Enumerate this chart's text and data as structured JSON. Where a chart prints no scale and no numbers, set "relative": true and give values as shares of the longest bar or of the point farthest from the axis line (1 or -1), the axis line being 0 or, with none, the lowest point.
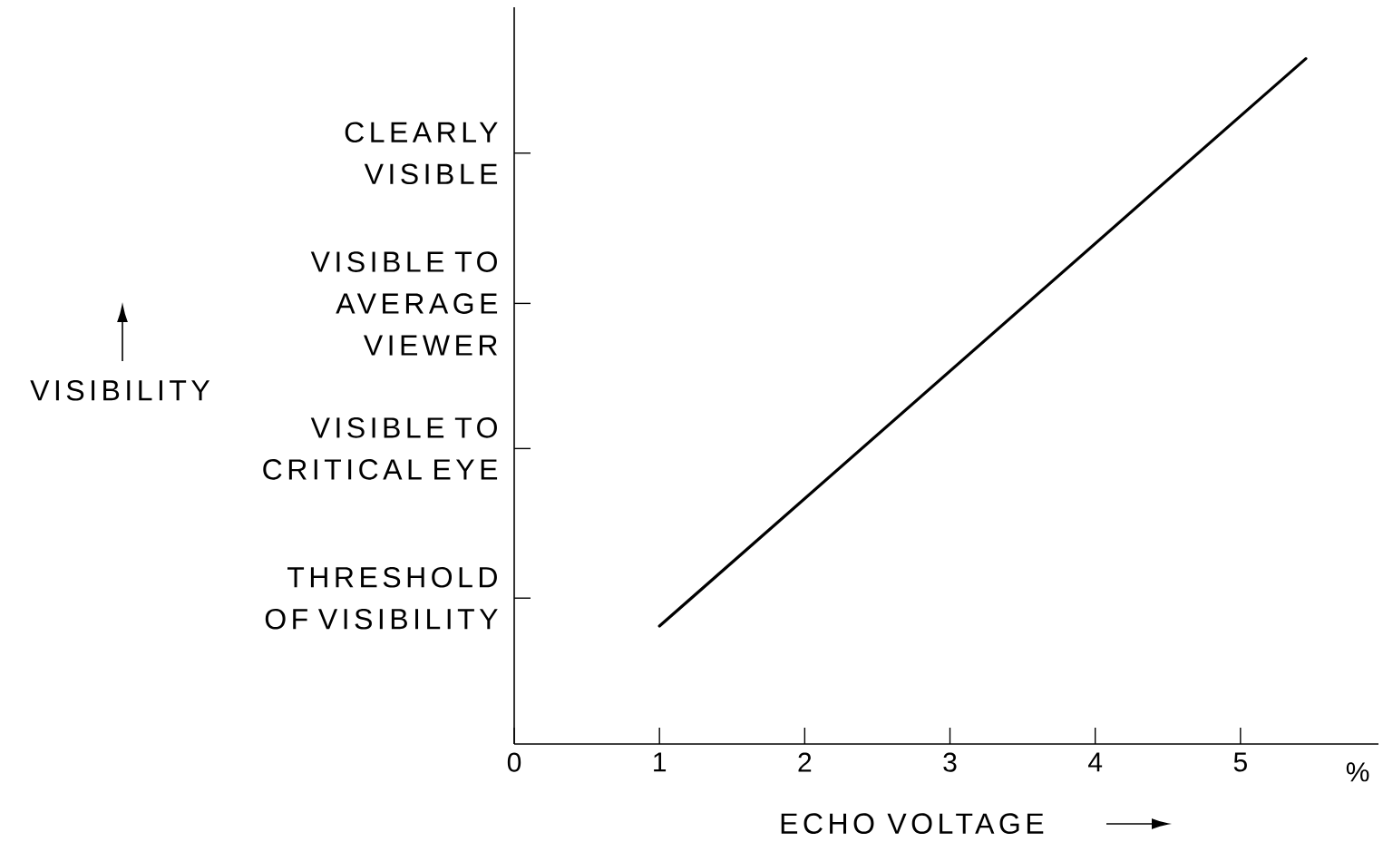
{
  "chart_data": {
    "type": "line",
    "relative": true,
    "xlabel": "ECHO VOLTAGE",
    "x": [
      1.0,
      5.45
    ],
    "values": [
      0.172,
      1
    ],
    "color": "#000000",
    "xlim": [
      0,
      5.95
    ],
    "xticks": [
      0,
      1,
      2,
      3,
      4,
      5
    ],
    "annotations": [
      "THRESHOLD OF VISIBILITY",
      "VISIBLE TO CRITICAL EYE",
      "VISIBLE TO AVERAGE VIEWER",
      "CLEARLY VISIBLE",
      "%",
      "VISIBILITY"
    ]
  }
}
